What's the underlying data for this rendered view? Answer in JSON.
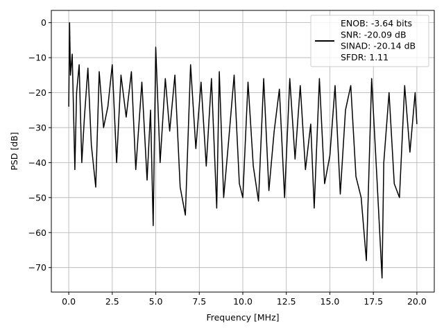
{
  "chart_data": {
    "type": "line",
    "title": "",
    "xlabel": "Frequency [MHz]",
    "ylabel": "PSD [dB]",
    "xlim": [
      -1.0,
      21.0
    ],
    "ylim": [
      -77,
      3.5
    ],
    "xticks": [
      0.0,
      2.5,
      5.0,
      7.5,
      10.0,
      12.5,
      15.0,
      17.5,
      20.0
    ],
    "xtick_labels": [
      "0.0",
      "2.5",
      "5.0",
      "7.5",
      "10.0",
      "12.5",
      "15.0",
      "17.5",
      "20.0"
    ],
    "yticks": [
      0,
      -10,
      -20,
      -30,
      -40,
      -50,
      -60,
      -70
    ],
    "ytick_labels": [
      "0",
      "−10",
      "−20",
      "−30",
      "−40",
      "−50",
      "−60",
      "−70"
    ],
    "grid": true,
    "legend_position": "top-right",
    "line_color": "#000000",
    "series": [
      {
        "name": "",
        "x": [
          0.0,
          0.05,
          0.1,
          0.2,
          0.35,
          0.45,
          0.6,
          0.75,
          0.9,
          1.1,
          1.3,
          1.55,
          1.75,
          2.0,
          2.25,
          2.5,
          2.75,
          3.0,
          3.3,
          3.6,
          3.85,
          4.2,
          4.5,
          4.7,
          4.85,
          5.0,
          5.25,
          5.55,
          5.8,
          6.1,
          6.4,
          6.7,
          7.0,
          7.3,
          7.6,
          7.9,
          8.2,
          8.5,
          8.65,
          8.9,
          9.2,
          9.5,
          9.8,
          10.0,
          10.3,
          10.6,
          10.9,
          11.2,
          11.5,
          11.8,
          12.1,
          12.4,
          12.7,
          13.0,
          13.3,
          13.6,
          13.9,
          14.1,
          14.4,
          14.7,
          15.0,
          15.3,
          15.6,
          15.9,
          16.2,
          16.5,
          16.8,
          17.1,
          17.4,
          17.7,
          18.0,
          18.1,
          18.4,
          18.7,
          19.0,
          19.3,
          19.6,
          19.9,
          20.0
        ],
        "values": [
          -24,
          0,
          -15,
          -9,
          -42,
          -20,
          -12,
          -40,
          -27,
          -13,
          -35,
          -47,
          -14,
          -30,
          -24,
          -12,
          -40,
          -15,
          -27,
          -14,
          -42,
          -17,
          -45,
          -25,
          -58,
          -7,
          -40,
          -16,
          -31,
          -15,
          -47,
          -55,
          -12,
          -36,
          -17,
          -41,
          -16,
          -53,
          -14,
          -50,
          -33,
          -15,
          -46,
          -50,
          -17,
          -41,
          -51,
          -16,
          -48,
          -31,
          -19,
          -50,
          -16,
          -39,
          -18,
          -42,
          -29,
          -53,
          -16,
          -46,
          -38,
          -18,
          -49,
          -25,
          -18,
          -44,
          -50,
          -68,
          -16,
          -44,
          -73,
          -40,
          -20,
          -46,
          -50,
          -18,
          -37,
          -20,
          -29
        ]
      }
    ],
    "legend_lines": [
      "ENOB: -3.64 bits",
      "SNR: -20.09 dB",
      "SINAD: -20.14 dB",
      "SFDR: 1.11"
    ]
  }
}
